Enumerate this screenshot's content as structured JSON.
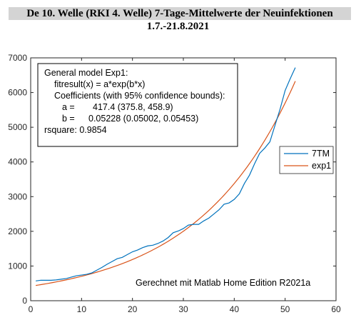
{
  "title": {
    "line1": "De 10. Welle (RKI 4. Welle) 7-Tage-Mittelwerte der Neuinfektionen",
    "line2": "1.7.-21.8.2021"
  },
  "fit_box": {
    "lines": [
      "General model Exp1:",
      "fitresult(x) = a*exp(b*x)",
      "Coefficients (with 95% confidence bounds):",
      "a =",
      "417.4  (375.8, 458.9)",
      "b =",
      "0.05228  (0.05002, 0.05453)",
      "rsquare: 0.9854"
    ]
  },
  "note": "Gerechnet mit Matlab Home Edition R2021a",
  "colors": {
    "series_7tm": "#0072bd",
    "series_exp1": "#d95319",
    "axis": "#262626"
  },
  "chart_data": {
    "type": "line",
    "xlim": [
      0,
      60
    ],
    "ylim": [
      0,
      7000
    ],
    "xticks": [
      0,
      10,
      20,
      30,
      40,
      50,
      60
    ],
    "yticks": [
      0,
      1000,
      2000,
      3000,
      4000,
      5000,
      6000,
      7000
    ],
    "xtick_labels": [
      "0",
      "10",
      "20",
      "30",
      "40",
      "50",
      "60"
    ],
    "ytick_labels": [
      "0",
      "1000",
      "2000",
      "3000",
      "4000",
      "5000",
      "6000",
      "7000"
    ],
    "legend_position": "right",
    "series": [
      {
        "name": "7TM",
        "x": [
          1,
          2,
          3,
          4,
          5,
          6,
          7,
          8,
          9,
          10,
          11,
          12,
          13,
          14,
          15,
          16,
          17,
          18,
          19,
          20,
          21,
          22,
          23,
          24,
          25,
          26,
          27,
          28,
          29,
          30,
          31,
          32,
          33,
          34,
          35,
          36,
          37,
          38,
          39,
          40,
          41,
          42,
          43,
          44,
          45,
          46,
          47,
          48,
          49,
          50,
          51,
          52
        ],
        "y": [
          570,
          590,
          590,
          590,
          600,
          620,
          640,
          680,
          720,
          740,
          760,
          800,
          880,
          960,
          1050,
          1130,
          1210,
          1250,
          1330,
          1410,
          1460,
          1530,
          1580,
          1600,
          1650,
          1720,
          1820,
          1960,
          2010,
          2080,
          2180,
          2200,
          2200,
          2300,
          2380,
          2500,
          2620,
          2780,
          2820,
          2920,
          3080,
          3380,
          3620,
          3950,
          4250,
          4400,
          4580,
          5050,
          5520,
          6060,
          6400,
          6720
        ]
      },
      {
        "name": "exp1",
        "function": "a*exp(b*x)",
        "a": 417.4,
        "b": 0.05228,
        "x_range": [
          1,
          52
        ]
      }
    ]
  }
}
